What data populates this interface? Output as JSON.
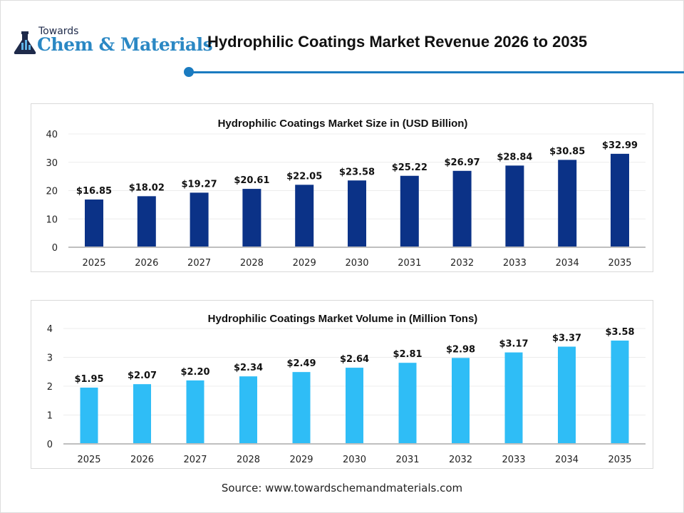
{
  "logo": {
    "line1": "Towards",
    "line2": "Chem & Materials"
  },
  "header": {
    "title": "Hydrophilic Coatings Market Revenue 2026 to 2035",
    "accent_color": "#1a7bc0"
  },
  "chart_data": [
    {
      "type": "bar",
      "title": "Hydrophilic Coatings Market Size in (USD Billion)",
      "categories": [
        "2025",
        "2026",
        "2027",
        "2028",
        "2029",
        "2030",
        "2031",
        "2032",
        "2033",
        "2034",
        "2035"
      ],
      "values": [
        16.85,
        18.02,
        19.27,
        20.61,
        22.05,
        23.58,
        25.22,
        26.97,
        28.84,
        30.85,
        32.99
      ],
      "data_labels": [
        "$16.85",
        "$18.02",
        "$19.27",
        "$20.61",
        "$22.05",
        "$23.58",
        "$25.22",
        "$26.97",
        "$28.84",
        "$30.85",
        "$32.99"
      ],
      "yticks": [
        "0",
        "10",
        "20",
        "30",
        "40"
      ],
      "ylim": [
        0,
        40
      ],
      "grid": true,
      "color": "#0b3287"
    },
    {
      "type": "bar",
      "title": "Hydrophilic Coatings Market Volume in (Million Tons)",
      "categories": [
        "2025",
        "2026",
        "2027",
        "2028",
        "2029",
        "2030",
        "2031",
        "2032",
        "2033",
        "2034",
        "2035"
      ],
      "values": [
        1.95,
        2.07,
        2.2,
        2.34,
        2.49,
        2.64,
        2.81,
        2.98,
        3.17,
        3.37,
        3.58
      ],
      "data_labels": [
        "$1.95",
        "$2.07",
        "$2.20",
        "$2.34",
        "$2.49",
        "$2.64",
        "$2.81",
        "$2.98",
        "$3.17",
        "$3.37",
        "$3.58"
      ],
      "yticks": [
        "0",
        "1",
        "2",
        "3",
        "4"
      ],
      "ylim": [
        0,
        4
      ],
      "grid": true,
      "color": "#2fbdf6"
    }
  ],
  "footer": {
    "source": "Source: www.towardschemandmaterials.com"
  }
}
